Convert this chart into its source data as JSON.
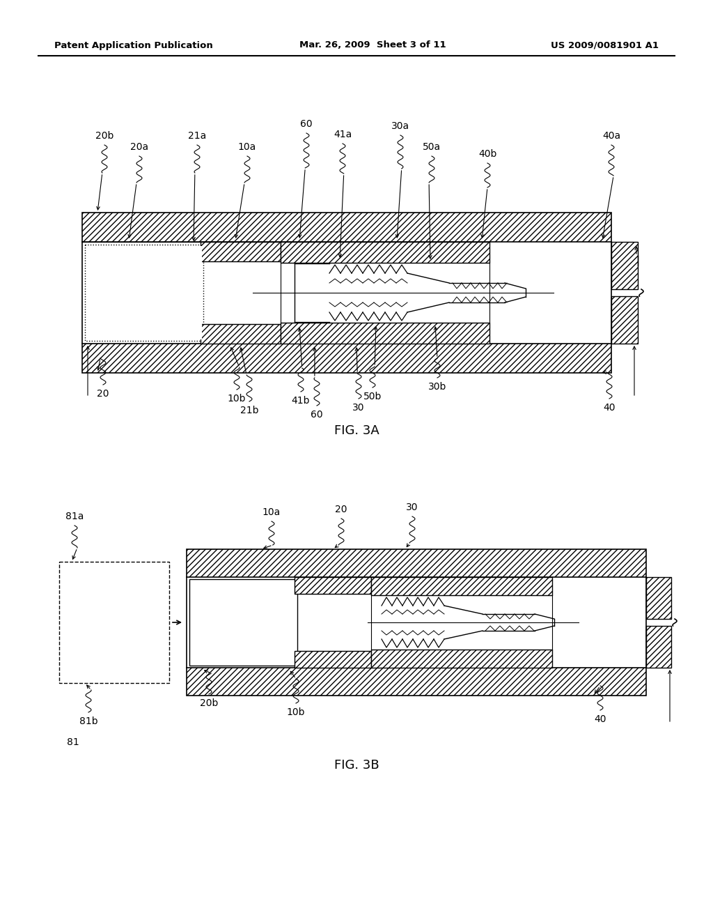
{
  "bg_color": "#ffffff",
  "header_left": "Patent Application Publication",
  "header_center": "Mar. 26, 2009  Sheet 3 of 11",
  "header_right": "US 2009/0081901 A1",
  "fig3a_caption": "FIG. 3A",
  "fig3b_caption": "FIG. 3B",
  "fig_width": 10.24,
  "fig_height": 13.2,
  "dpi": 100
}
